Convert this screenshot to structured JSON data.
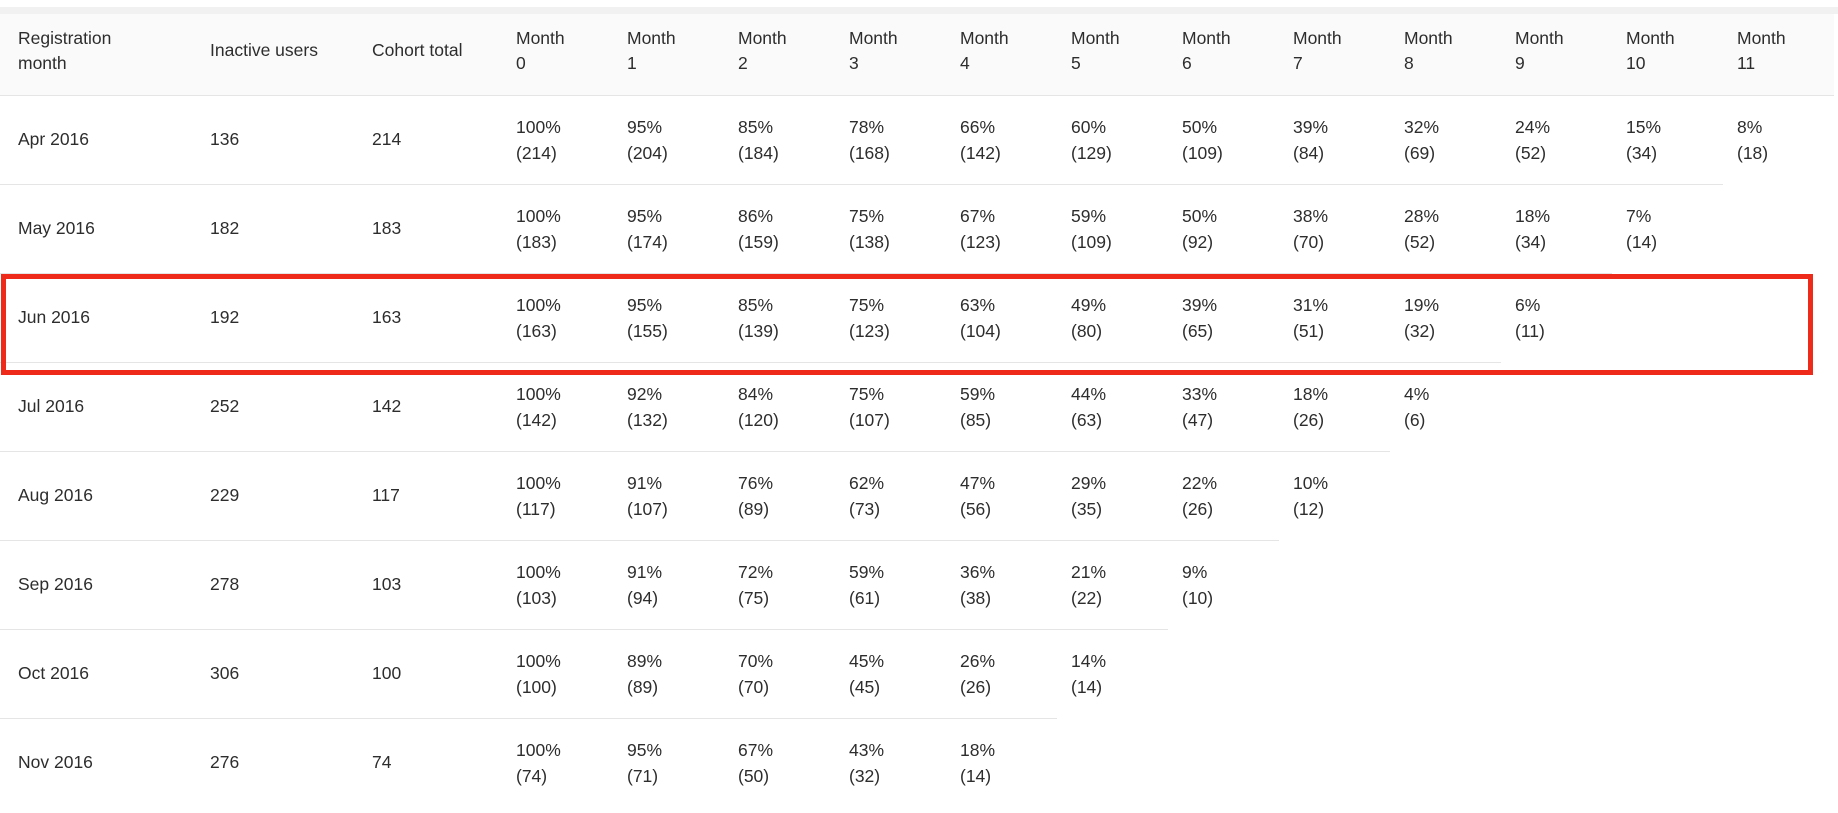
{
  "highlight": {
    "row": "Jun 2016",
    "row_index": 2,
    "color": "#ee2b1a"
  },
  "chart_data": {
    "type": "table",
    "columns": [
      "Registration month",
      "Inactive users",
      "Cohort total",
      "Month 0",
      "Month 1",
      "Month 2",
      "Month 3",
      "Month 4",
      "Month 5",
      "Month 6",
      "Month 7",
      "Month 8",
      "Month 9",
      "Month 10",
      "Month 11"
    ],
    "rows": [
      {
        "registration_month": "Apr 2016",
        "inactive_users": "136",
        "cohort_total": "214",
        "retention": [
          {
            "pct": "100%",
            "n": "(214)"
          },
          {
            "pct": "95%",
            "n": "(204)"
          },
          {
            "pct": "85%",
            "n": "(184)"
          },
          {
            "pct": "78%",
            "n": "(168)"
          },
          {
            "pct": "66%",
            "n": "(142)"
          },
          {
            "pct": "60%",
            "n": "(129)"
          },
          {
            "pct": "50%",
            "n": "(109)"
          },
          {
            "pct": "39%",
            "n": "(84)"
          },
          {
            "pct": "32%",
            "n": "(69)"
          },
          {
            "pct": "24%",
            "n": "(52)"
          },
          {
            "pct": "15%",
            "n": "(34)"
          },
          {
            "pct": "8%",
            "n": "(18)"
          }
        ]
      },
      {
        "registration_month": "May 2016",
        "inactive_users": "182",
        "cohort_total": "183",
        "retention": [
          {
            "pct": "100%",
            "n": "(183)"
          },
          {
            "pct": "95%",
            "n": "(174)"
          },
          {
            "pct": "86%",
            "n": "(159)"
          },
          {
            "pct": "75%",
            "n": "(138)"
          },
          {
            "pct": "67%",
            "n": "(123)"
          },
          {
            "pct": "59%",
            "n": "(109)"
          },
          {
            "pct": "50%",
            "n": "(92)"
          },
          {
            "pct": "38%",
            "n": "(70)"
          },
          {
            "pct": "28%",
            "n": "(52)"
          },
          {
            "pct": "18%",
            "n": "(34)"
          },
          {
            "pct": "7%",
            "n": "(14)"
          },
          null
        ]
      },
      {
        "registration_month": "Jun 2016",
        "inactive_users": "192",
        "cohort_total": "163",
        "retention": [
          {
            "pct": "100%",
            "n": "(163)"
          },
          {
            "pct": "95%",
            "n": "(155)"
          },
          {
            "pct": "85%",
            "n": "(139)"
          },
          {
            "pct": "75%",
            "n": "(123)"
          },
          {
            "pct": "63%",
            "n": "(104)"
          },
          {
            "pct": "49%",
            "n": "(80)"
          },
          {
            "pct": "39%",
            "n": "(65)"
          },
          {
            "pct": "31%",
            "n": "(51)"
          },
          {
            "pct": "19%",
            "n": "(32)"
          },
          {
            "pct": "6%",
            "n": "(11)"
          },
          null,
          null
        ]
      },
      {
        "registration_month": "Jul 2016",
        "inactive_users": "252",
        "cohort_total": "142",
        "retention": [
          {
            "pct": "100%",
            "n": "(142)"
          },
          {
            "pct": "92%",
            "n": "(132)"
          },
          {
            "pct": "84%",
            "n": "(120)"
          },
          {
            "pct": "75%",
            "n": "(107)"
          },
          {
            "pct": "59%",
            "n": "(85)"
          },
          {
            "pct": "44%",
            "n": "(63)"
          },
          {
            "pct": "33%",
            "n": "(47)"
          },
          {
            "pct": "18%",
            "n": "(26)"
          },
          {
            "pct": "4%",
            "n": "(6)"
          },
          null,
          null,
          null
        ]
      },
      {
        "registration_month": "Aug 2016",
        "inactive_users": "229",
        "cohort_total": "117",
        "retention": [
          {
            "pct": "100%",
            "n": "(117)"
          },
          {
            "pct": "91%",
            "n": "(107)"
          },
          {
            "pct": "76%",
            "n": "(89)"
          },
          {
            "pct": "62%",
            "n": "(73)"
          },
          {
            "pct": "47%",
            "n": "(56)"
          },
          {
            "pct": "29%",
            "n": "(35)"
          },
          {
            "pct": "22%",
            "n": "(26)"
          },
          {
            "pct": "10%",
            "n": "(12)"
          },
          null,
          null,
          null,
          null
        ]
      },
      {
        "registration_month": "Sep 2016",
        "inactive_users": "278",
        "cohort_total": "103",
        "retention": [
          {
            "pct": "100%",
            "n": "(103)"
          },
          {
            "pct": "91%",
            "n": "(94)"
          },
          {
            "pct": "72%",
            "n": "(75)"
          },
          {
            "pct": "59%",
            "n": "(61)"
          },
          {
            "pct": "36%",
            "n": "(38)"
          },
          {
            "pct": "21%",
            "n": "(22)"
          },
          {
            "pct": "9%",
            "n": "(10)"
          },
          null,
          null,
          null,
          null,
          null
        ]
      },
      {
        "registration_month": "Oct 2016",
        "inactive_users": "306",
        "cohort_total": "100",
        "retention": [
          {
            "pct": "100%",
            "n": "(100)"
          },
          {
            "pct": "89%",
            "n": "(89)"
          },
          {
            "pct": "70%",
            "n": "(70)"
          },
          {
            "pct": "45%",
            "n": "(45)"
          },
          {
            "pct": "26%",
            "n": "(26)"
          },
          {
            "pct": "14%",
            "n": "(14)"
          },
          null,
          null,
          null,
          null,
          null,
          null
        ]
      },
      {
        "registration_month": "Nov 2016",
        "inactive_users": "276",
        "cohort_total": "74",
        "retention": [
          {
            "pct": "100%",
            "n": "(74)"
          },
          {
            "pct": "95%",
            "n": "(71)"
          },
          {
            "pct": "67%",
            "n": "(50)"
          },
          {
            "pct": "43%",
            "n": "(32)"
          },
          {
            "pct": "18%",
            "n": "(14)"
          },
          null,
          null,
          null,
          null,
          null,
          null,
          null
        ]
      }
    ]
  }
}
